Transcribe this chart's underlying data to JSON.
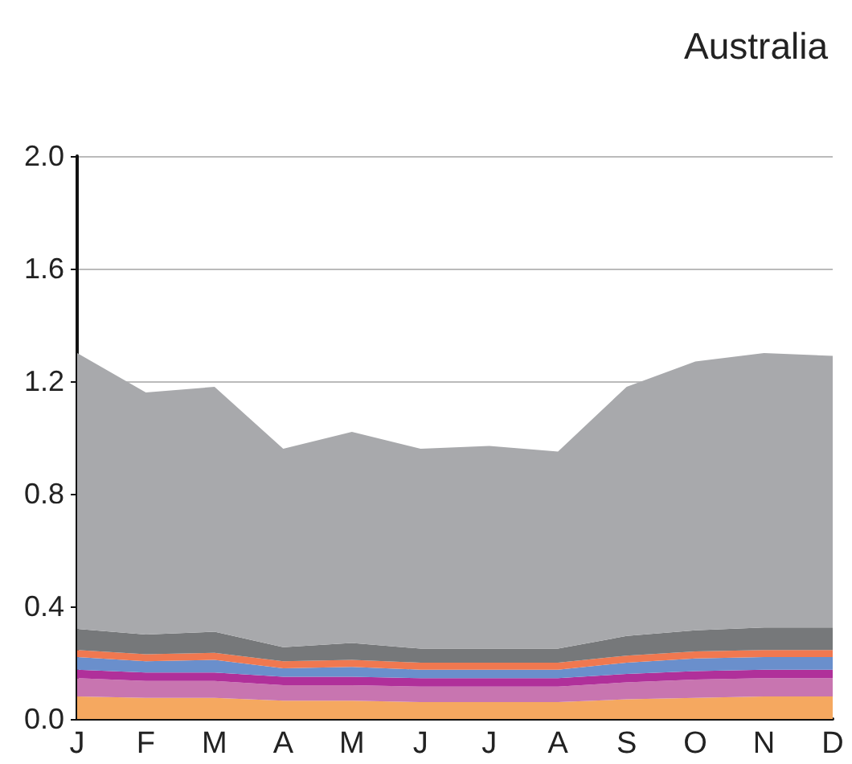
{
  "chart_data": {
    "type": "area",
    "title": "Australia",
    "stacked": true,
    "grid": "y",
    "categories": [
      "J",
      "F",
      "M",
      "A",
      "M",
      "J",
      "J",
      "A",
      "S",
      "O",
      "N",
      "D"
    ],
    "ylim": [
      0,
      2.0
    ],
    "yticks": [
      {
        "value": 0,
        "label": "0.0"
      },
      0.4,
      0.8,
      1.2,
      1.6,
      {
        "value": 2,
        "label": "2.0"
      }
    ],
    "series": [
      {
        "color": "#f5a860",
        "values": [
          0.08,
          0.075,
          0.075,
          0.065,
          0.065,
          0.06,
          0.06,
          0.06,
          0.07,
          0.075,
          0.08,
          0.08
        ]
      },
      {
        "color": "#c875b0",
        "values": [
          0.065,
          0.06,
          0.06,
          0.055,
          0.055,
          0.055,
          0.055,
          0.055,
          0.06,
          0.065,
          0.065,
          0.065
        ]
      },
      {
        "color": "#b0309a",
        "values": [
          0.03,
          0.03,
          0.03,
          0.03,
          0.03,
          0.03,
          0.03,
          0.03,
          0.03,
          0.03,
          0.03,
          0.03
        ]
      },
      {
        "color": "#6a8fcc",
        "values": [
          0.045,
          0.04,
          0.045,
          0.03,
          0.035,
          0.03,
          0.03,
          0.03,
          0.04,
          0.045,
          0.045,
          0.045
        ]
      },
      {
        "color": "#f07850",
        "values": [
          0.025,
          0.025,
          0.025,
          0.025,
          0.025,
          0.025,
          0.025,
          0.025,
          0.025,
          0.025,
          0.025,
          0.025
        ]
      },
      {
        "color": "#76787a",
        "values": [
          0.075,
          0.07,
          0.075,
          0.05,
          0.06,
          0.05,
          0.05,
          0.05,
          0.07,
          0.075,
          0.08,
          0.08
        ]
      },
      {
        "color": "#a8a9ac",
        "values": [
          0.98,
          0.86,
          0.87,
          0.705,
          0.75,
          0.71,
          0.72,
          0.7,
          0.885,
          0.955,
          0.975,
          0.965
        ]
      }
    ]
  }
}
